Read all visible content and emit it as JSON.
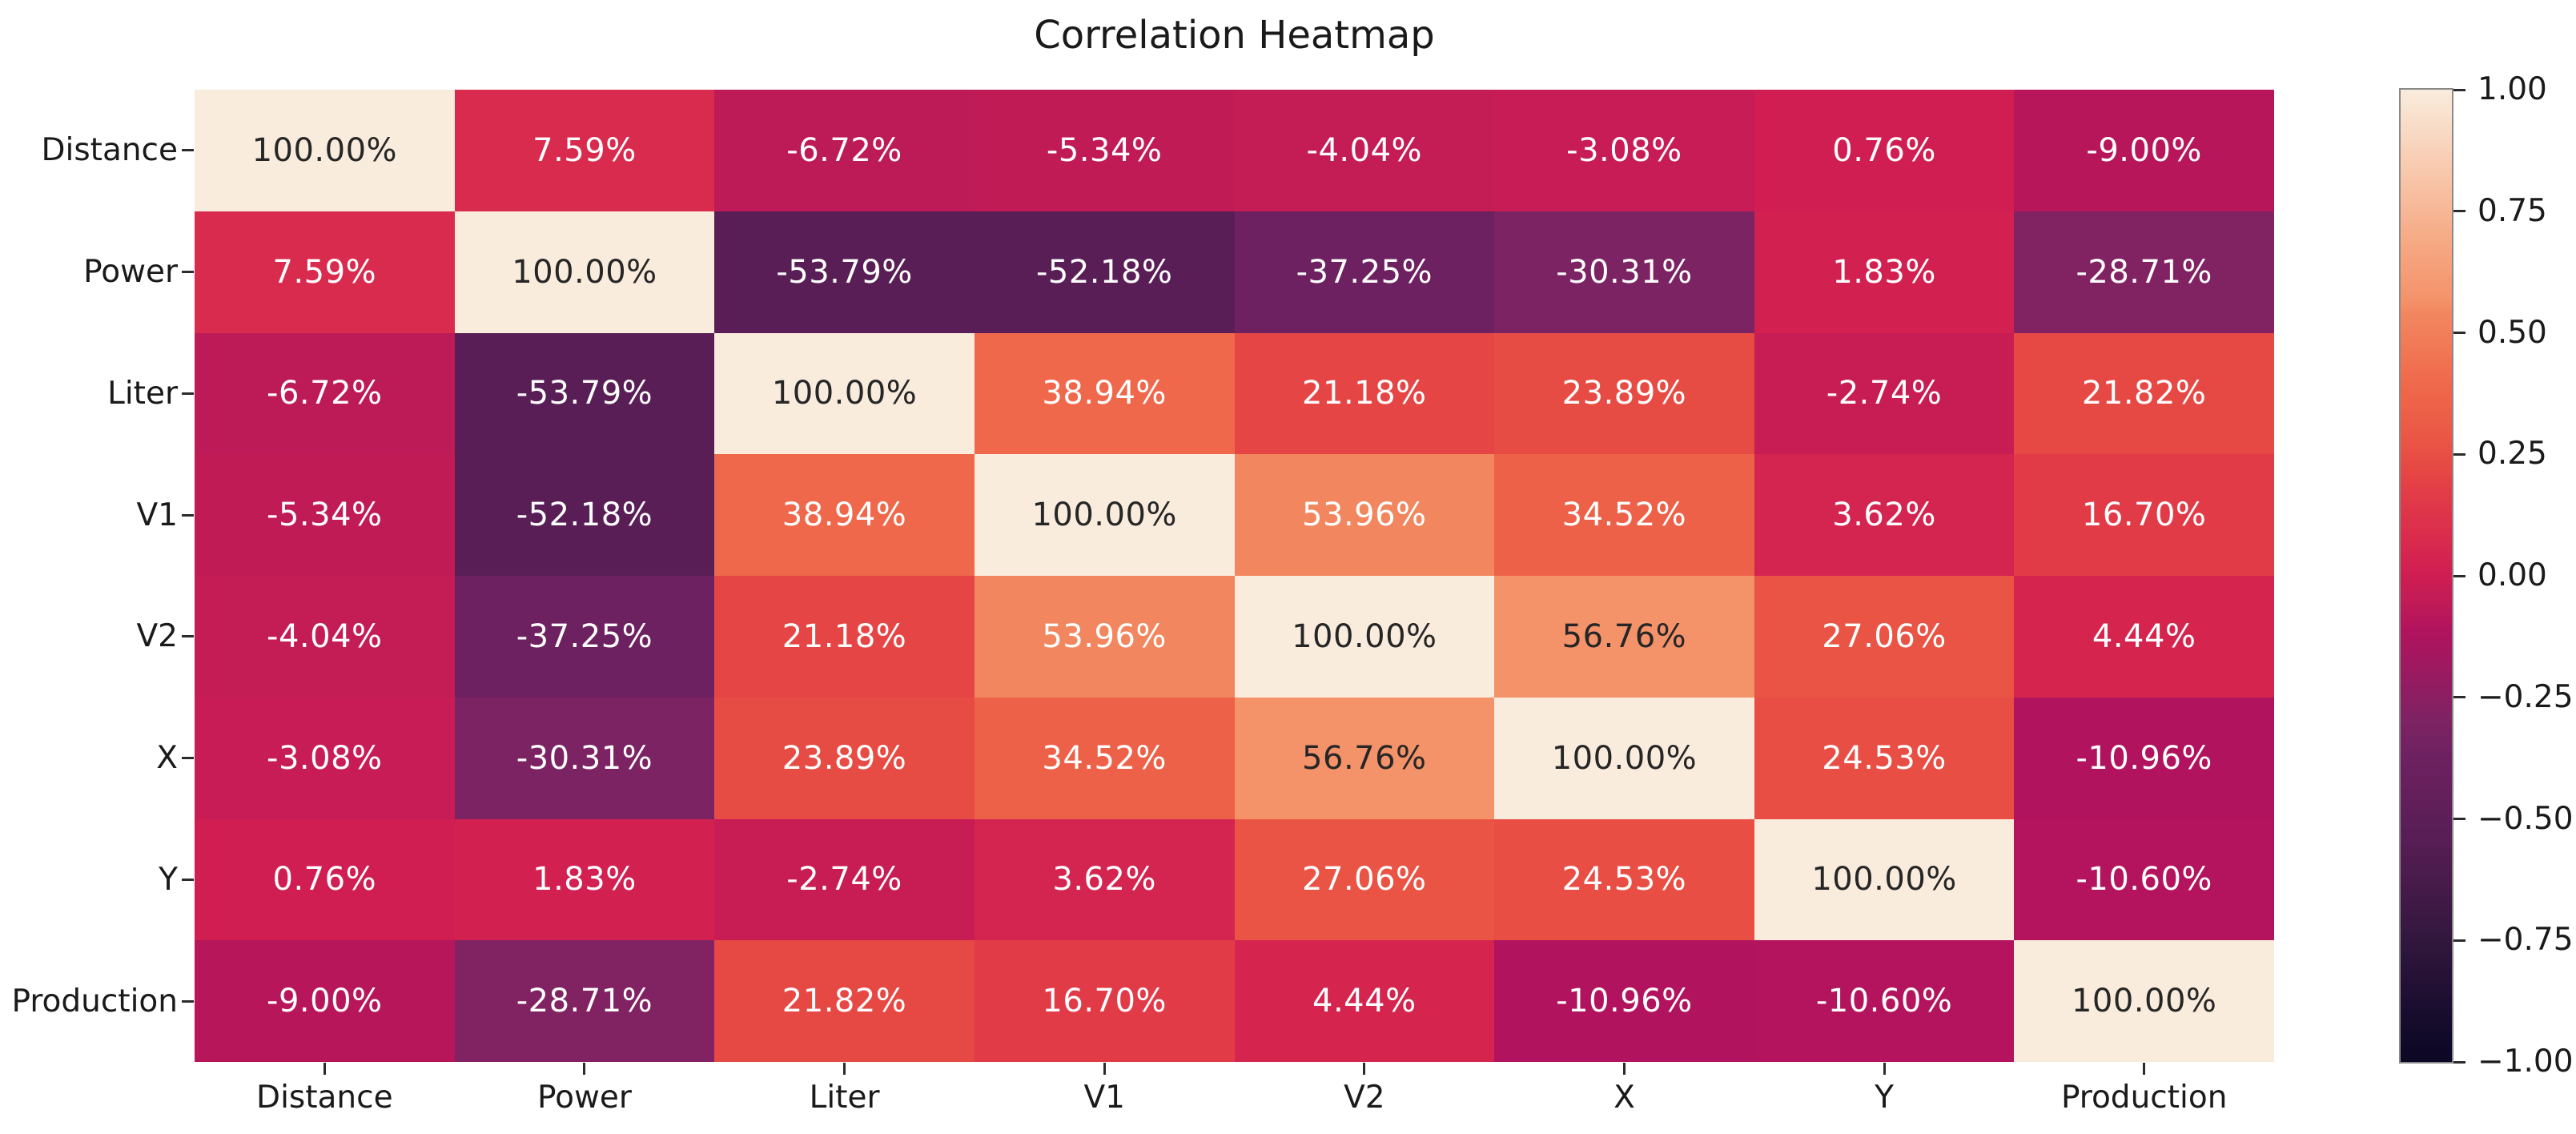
{
  "figure": {
    "title": "Correlation Heatmap",
    "background_color": "#ffffff",
    "axis_text_color": "#1a1a1a"
  },
  "chart_data": {
    "type": "heatmap",
    "title": "Correlation Heatmap",
    "categories": [
      "Distance",
      "Power",
      "Liter",
      "V1",
      "V2",
      "X",
      "Y",
      "Production"
    ],
    "values_unit": "percent",
    "matrix_percent": [
      [
        100.0,
        7.59,
        -6.72,
        -5.34,
        -4.04,
        -3.08,
        0.76,
        -9.0
      ],
      [
        7.59,
        100.0,
        -53.79,
        -52.18,
        -37.25,
        -30.31,
        1.83,
        -28.71
      ],
      [
        -6.72,
        -53.79,
        100.0,
        38.94,
        21.18,
        23.89,
        -2.74,
        21.82
      ],
      [
        -5.34,
        -52.18,
        38.94,
        100.0,
        53.96,
        34.52,
        3.62,
        16.7
      ],
      [
        -4.04,
        -37.25,
        21.18,
        53.96,
        100.0,
        56.76,
        27.06,
        4.44
      ],
      [
        -3.08,
        -30.31,
        23.89,
        34.52,
        56.76,
        100.0,
        24.53,
        -10.96
      ],
      [
        0.76,
        1.83,
        -2.74,
        3.62,
        27.06,
        24.53,
        100.0,
        -10.6
      ],
      [
        -9.0,
        -28.71,
        21.82,
        16.7,
        4.44,
        -10.96,
        -10.6,
        100.0
      ]
    ],
    "colorbar": {
      "range": [
        -1.0,
        1.0
      ],
      "tick_labels": [
        "1.00",
        "0.75",
        "0.50",
        "0.25",
        "0.00",
        "−0.25",
        "−0.50",
        "−0.75",
        "−1.00"
      ],
      "tick_values": [
        1.0,
        0.75,
        0.5,
        0.25,
        0.0,
        -0.25,
        -0.5,
        -0.75,
        -1.0
      ],
      "position": "right"
    },
    "colormap": {
      "name": "rocket-like",
      "anchors": [
        {
          "t": 0.0,
          "color": "#0B0724"
        },
        {
          "t": 0.06,
          "color": "#1C0E30"
        },
        {
          "t": 0.125,
          "color": "#32173D"
        },
        {
          "t": 0.231,
          "color": "#581E55"
        },
        {
          "t": 0.314,
          "color": "#6E2160"
        },
        {
          "t": 0.35,
          "color": "#7D2363"
        },
        {
          "t": 0.4,
          "color": "#9A1A60"
        },
        {
          "t": 0.445,
          "color": "#B2135E"
        },
        {
          "t": 0.47,
          "color": "#BF1B57"
        },
        {
          "t": 0.5,
          "color": "#CF1D52"
        },
        {
          "t": 0.54,
          "color": "#DA2C4D"
        },
        {
          "t": 0.585,
          "color": "#E23C48"
        },
        {
          "t": 0.61,
          "color": "#E64844"
        },
        {
          "t": 0.64,
          "color": "#EA5645"
        },
        {
          "t": 0.675,
          "color": "#ED6248"
        },
        {
          "t": 0.7,
          "color": "#EF6A4C"
        },
        {
          "t": 0.77,
          "color": "#F2875F"
        },
        {
          "t": 0.785,
          "color": "#F4936B"
        },
        {
          "t": 0.85,
          "color": "#F6AC87"
        },
        {
          "t": 0.925,
          "color": "#F8CCB2"
        },
        {
          "t": 1.0,
          "color": "#F9ECDD"
        }
      ]
    },
    "annotation_colors": {
      "dark_text": "#262626",
      "light_text": "#ffffff",
      "luminance_threshold": 0.405
    },
    "layout_hints": {
      "grid": "off",
      "cell_annotations": "value as percent with 2 decimals",
      "legend": "colorbar on right"
    }
  }
}
